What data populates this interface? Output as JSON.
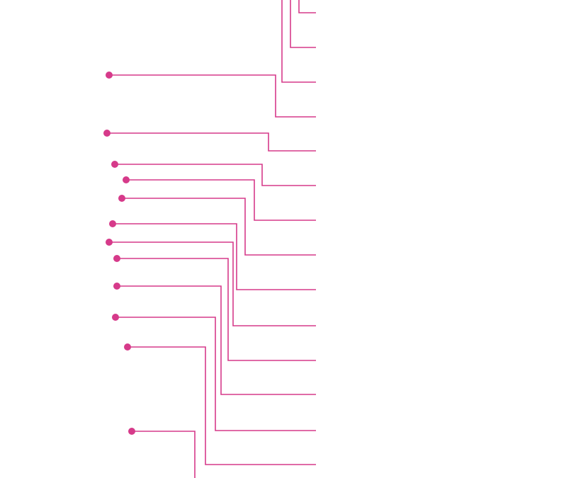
{
  "diagram": {
    "type": "callout-leader-lines",
    "line_color": "#d63a8a",
    "dot_color": "#d63a8a",
    "background": "#ffffff",
    "leader_count": 16,
    "anchored_leader_count": 12,
    "labels": []
  }
}
